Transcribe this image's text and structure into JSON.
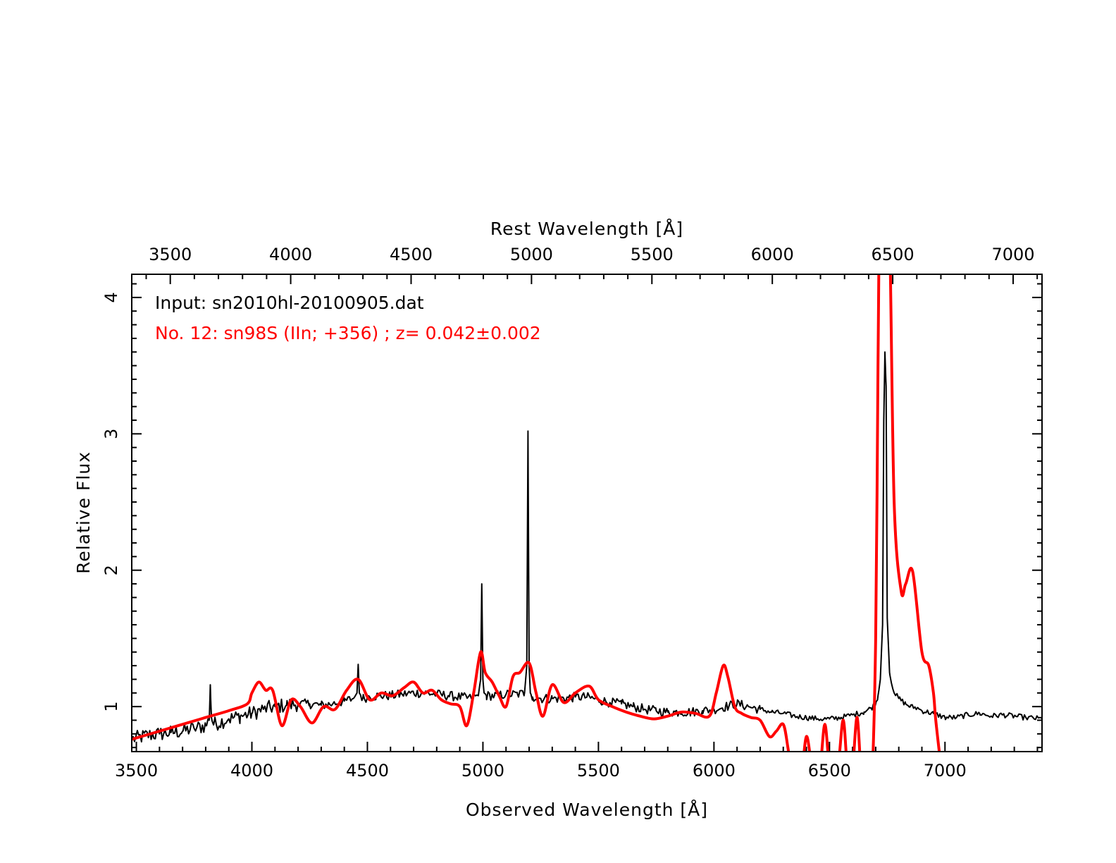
{
  "chart_data": {
    "type": "line",
    "xlabel_bottom": "Observed Wavelength [Å]",
    "xlabel_top": "Rest Wavelength [Å]",
    "ylabel": "Relative Flux",
    "xlim": [
      3480,
      7420
    ],
    "ylim": [
      0.67,
      4.17
    ],
    "top_xlim": [
      3340,
      7120
    ],
    "xticks_bottom": [
      3500,
      4000,
      4500,
      5000,
      5500,
      6000,
      6500,
      7000
    ],
    "xticks_top": [
      3500,
      4000,
      4500,
      5000,
      5500,
      6000,
      6500,
      7000
    ],
    "yticks": [
      1,
      2,
      3,
      4
    ],
    "grid": false,
    "annotations": [
      {
        "text": "Input: sn2010hl-20100905.dat",
        "color": "#000000"
      },
      {
        "text": "No. 12: sn98S (IIn; +356) ; z= 0.042±0.002",
        "color": "#ff0000"
      }
    ],
    "series": [
      {
        "color": "#000000",
        "style": "noisy",
        "x": [
          3480,
          3550,
          3600,
          3650,
          3700,
          3750,
          3800,
          3815,
          3820,
          3825,
          3835,
          3900,
          3950,
          4000,
          4050,
          4100,
          4150,
          4200,
          4250,
          4300,
          4350,
          4400,
          4440,
          4455,
          4460,
          4465,
          4480,
          4500,
          4550,
          4600,
          4650,
          4700,
          4750,
          4800,
          4850,
          4900,
          4950,
          4980,
          4990,
          4995,
          5000,
          5005,
          5015,
          5050,
          5100,
          5150,
          5180,
          5190,
          5195,
          5200,
          5205,
          5215,
          5250,
          5300,
          5350,
          5400,
          5450,
          5500,
          5550,
          5600,
          5650,
          5700,
          5750,
          5800,
          5850,
          5900,
          5950,
          6000,
          6050,
          6100,
          6150,
          6200,
          6250,
          6300,
          6350,
          6400,
          6450,
          6500,
          6550,
          6600,
          6650,
          6680,
          6700,
          6710,
          6720,
          6730,
          6735,
          6740,
          6745,
          6750,
          6760,
          6780,
          6800,
          6830,
          6850,
          6880,
          6900,
          6950,
          7000,
          7050,
          7100,
          7150,
          7200,
          7250,
          7300,
          7350,
          7420
        ],
        "y": [
          0.76,
          0.79,
          0.8,
          0.81,
          0.82,
          0.84,
          0.86,
          0.9,
          1.16,
          0.92,
          0.87,
          0.91,
          0.93,
          0.95,
          0.98,
          1.0,
          1.01,
          1.02,
          1.02,
          1.01,
          1.02,
          1.04,
          1.06,
          1.1,
          1.31,
          1.1,
          1.06,
          1.07,
          1.08,
          1.08,
          1.09,
          1.1,
          1.1,
          1.09,
          1.08,
          1.07,
          1.06,
          1.08,
          1.2,
          1.9,
          1.2,
          1.1,
          1.08,
          1.08,
          1.09,
          1.09,
          1.1,
          1.3,
          3.02,
          1.3,
          1.1,
          1.07,
          1.06,
          1.06,
          1.06,
          1.07,
          1.07,
          1.05,
          1.03,
          1.02,
          1.0,
          0.98,
          0.97,
          0.96,
          0.96,
          0.96,
          0.97,
          0.98,
          1.0,
          1.02,
          1.0,
          0.98,
          0.96,
          0.95,
          0.93,
          0.92,
          0.91,
          0.91,
          0.92,
          0.94,
          0.96,
          0.99,
          1.02,
          1.08,
          1.2,
          1.6,
          3.1,
          3.6,
          3.35,
          1.65,
          1.25,
          1.1,
          1.06,
          1.02,
          1.0,
          0.99,
          0.97,
          0.95,
          0.92,
          0.92,
          0.94,
          0.95,
          0.93,
          0.94,
          0.93,
          0.92,
          0.91
        ]
      },
      {
        "color": "#ff0000",
        "style": "smooth",
        "x": [
          3480,
          3600,
          3700,
          3800,
          3900,
          3980,
          4000,
          4030,
          4060,
          4090,
          4130,
          4170,
          4210,
          4260,
          4310,
          4360,
          4410,
          4460,
          4510,
          4560,
          4610,
          4660,
          4700,
          4740,
          4780,
          4820,
          4860,
          4900,
          4930,
          4960,
          4990,
          5010,
          5040,
          5070,
          5100,
          5130,
          5160,
          5200,
          5230,
          5260,
          5300,
          5350,
          5400,
          5460,
          5500,
          5560,
          5620,
          5680,
          5740,
          5800,
          5860,
          5920,
          5980,
          6010,
          6040,
          6060,
          6090,
          6120,
          6160,
          6200,
          6240,
          6270,
          6300,
          6320,
          6340,
          6360,
          6380,
          6400,
          6420,
          6440,
          6460,
          6480,
          6500,
          6520,
          6540,
          6560,
          6580,
          6600,
          6620,
          6640,
          6660,
          6680,
          6700,
          6710,
          6720,
          6740,
          6760,
          6780,
          6810,
          6830,
          6860,
          6900,
          6930,
          6950,
          6960,
          6980
        ],
        "y": [
          0.76,
          0.82,
          0.87,
          0.92,
          0.97,
          1.02,
          1.1,
          1.18,
          1.12,
          1.12,
          0.86,
          1.05,
          1.0,
          0.88,
          1.0,
          0.98,
          1.12,
          1.2,
          1.05,
          1.1,
          1.08,
          1.14,
          1.18,
          1.1,
          1.12,
          1.05,
          1.02,
          1.0,
          0.86,
          1.1,
          1.4,
          1.25,
          1.18,
          1.08,
          1.0,
          1.22,
          1.25,
          1.32,
          1.1,
          0.93,
          1.16,
          1.03,
          1.1,
          1.15,
          1.05,
          1.0,
          0.96,
          0.93,
          0.91,
          0.93,
          0.96,
          0.95,
          0.93,
          1.1,
          1.3,
          1.22,
          1.0,
          0.95,
          0.92,
          0.9,
          0.78,
          0.82,
          0.87,
          0.7,
          0.45,
          0.3,
          0.5,
          0.78,
          0.6,
          0.4,
          0.55,
          0.87,
          0.55,
          0.45,
          0.6,
          0.9,
          0.5,
          0.55,
          0.92,
          0.4,
          0.2,
          0.3,
          1.5,
          3.5,
          5.0,
          5.2,
          4.5,
          2.5,
          1.85,
          1.9,
          1.99,
          1.4,
          1.3,
          1.1,
          0.9,
          0.6
        ]
      }
    ]
  }
}
